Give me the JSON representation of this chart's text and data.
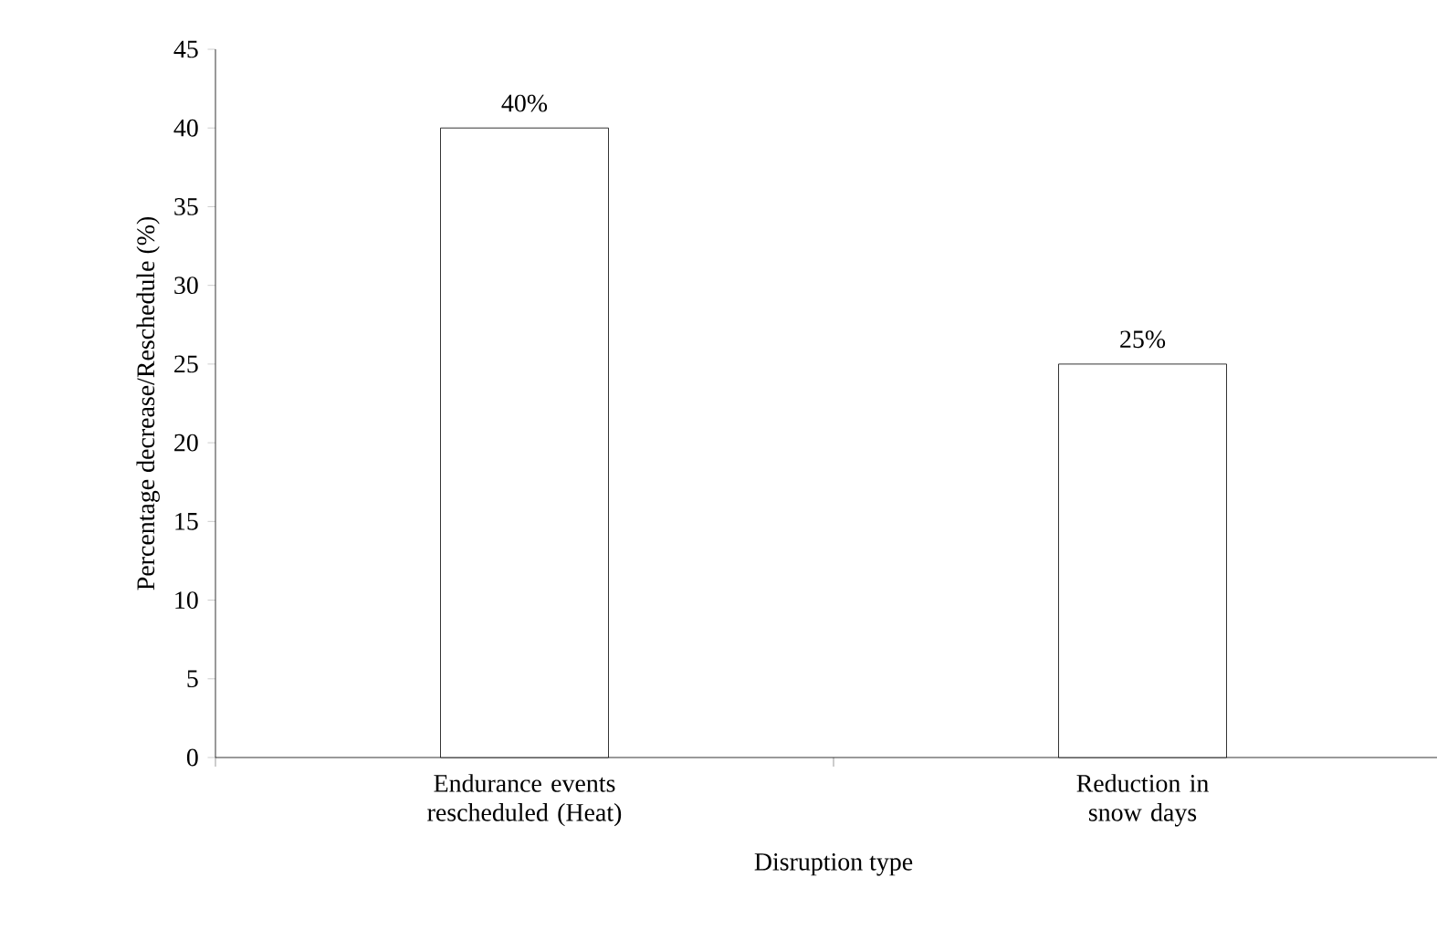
{
  "chart_data": {
    "type": "bar",
    "xlabel": "Disruption type",
    "ylabel": "Percentage decrease/Reschedule (%)",
    "categories": [
      "Endurance events rescheduled (Heat)",
      "Reduction in snow days"
    ],
    "values": [
      40,
      25
    ],
    "value_labels": [
      "40%",
      "25%"
    ],
    "color": "#ffffff",
    "ylim": [
      0,
      45
    ],
    "yticks": [
      0,
      5,
      10,
      15,
      20,
      25,
      30,
      35,
      40,
      45
    ],
    "grid": false
  }
}
